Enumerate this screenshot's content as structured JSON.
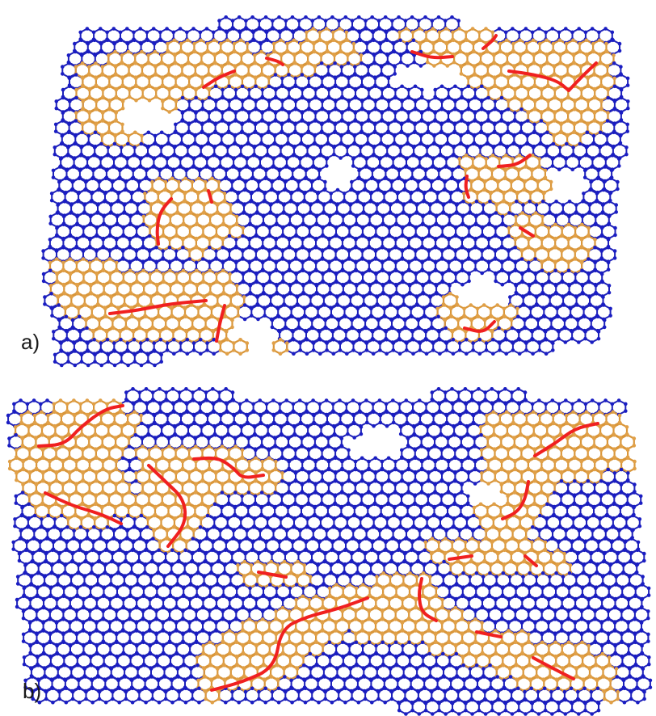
{
  "panels": [
    {
      "label": "a)"
    },
    {
      "label": "b)"
    }
  ],
  "colors": {
    "lattice": "#1f22b8",
    "atom": "#1a1dc2",
    "defect_region": "#d9963a",
    "defect_atom": "#e0a048",
    "defect_line": "#f02020"
  },
  "legend": []
}
